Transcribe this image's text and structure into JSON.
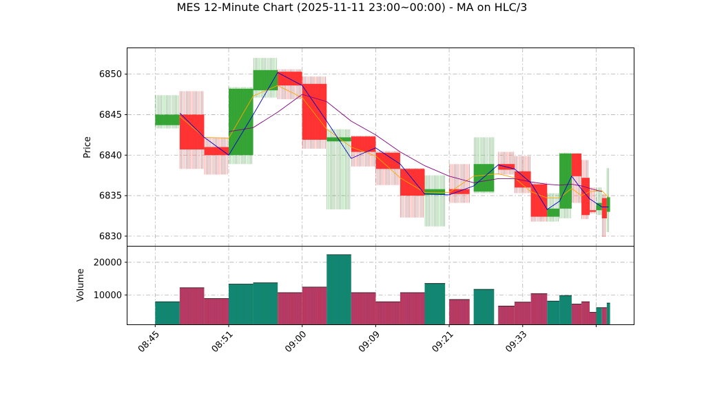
{
  "chart_data": {
    "type": "candlestick",
    "title": "MES 12-Minute Chart (2025-11-11 23:00~00:00) - MA on HLC/3",
    "xlabel": "",
    "ylabel_price": "Price",
    "ylabel_volume": "Volume",
    "x_ticks": [
      "08:45",
      "08:51",
      "09:00",
      "09:09",
      "09:21",
      "09:33"
    ],
    "price_ticks": [
      6830,
      6835,
      6840,
      6845,
      6850
    ],
    "volume_ticks": [
      10000,
      20000
    ],
    "price_ylim": [
      6828.8,
      6853.2
    ],
    "volume_ylim": [
      1000,
      24800
    ],
    "grid": true,
    "colors": {
      "up": "#2ca02c",
      "down": "#ff2a2a",
      "ma_fast": "#ffa500",
      "ma_mid": "#0000cc",
      "ma_slow": "#800080",
      "volume_up": "#118866",
      "volume_down": "#bb3355"
    },
    "bars": [
      {
        "t": 0,
        "w": 3,
        "o": 6843.7,
        "h": 6847.4,
        "l": 6843.3,
        "c": 6845.0,
        "v": 8000
      },
      {
        "t": 3,
        "w": 3,
        "o": 6845.0,
        "h": 6847.9,
        "l": 6838.3,
        "c": 6840.7,
        "v": 12300
      },
      {
        "t": 6,
        "w": 3,
        "o": 6841.0,
        "h": 6842.2,
        "l": 6837.6,
        "c": 6840.0,
        "v": 9000
      },
      {
        "t": 9,
        "w": 3,
        "o": 6840.0,
        "h": 6848.4,
        "l": 6838.9,
        "c": 6848.2,
        "v": 13400
      },
      {
        "t": 12,
        "w": 3,
        "o": 6848.0,
        "h": 6852.0,
        "l": 6847.1,
        "c": 6850.5,
        "v": 13800
      },
      {
        "t": 15,
        "w": 3,
        "o": 6850.3,
        "h": 6850.6,
        "l": 6846.9,
        "c": 6848.6,
        "v": 10800
      },
      {
        "t": 18,
        "w": 3,
        "o": 6848.8,
        "h": 6849.7,
        "l": 6840.8,
        "c": 6841.9,
        "v": 12500
      },
      {
        "t": 21,
        "w": 3,
        "o": 6841.7,
        "h": 6843.2,
        "l": 6833.3,
        "c": 6842.2,
        "v": 22400
      },
      {
        "t": 24,
        "w": 3,
        "o": 6842.3,
        "h": 6842.4,
        "l": 6838.6,
        "c": 6840.4,
        "v": 10800
      },
      {
        "t": 27,
        "w": 3,
        "o": 6840.3,
        "h": 6840.5,
        "l": 6836.3,
        "c": 6838.3,
        "v": 8000
      },
      {
        "t": 30,
        "w": 3,
        "o": 6838.3,
        "h": 6838.4,
        "l": 6832.3,
        "c": 6835.0,
        "v": 10800
      },
      {
        "t": 33,
        "w": 2.5,
        "o": 6835.1,
        "h": 6837.5,
        "l": 6831.2,
        "c": 6835.8,
        "v": 13600
      },
      {
        "t": 36,
        "w": 2.5,
        "o": 6835.8,
        "h": 6838.9,
        "l": 6834.1,
        "c": 6835.2,
        "v": 8700
      },
      {
        "t": 39,
        "w": 2.5,
        "o": 6835.5,
        "h": 6842.2,
        "l": 6835.3,
        "c": 6838.9,
        "v": 11800
      },
      {
        "t": 42,
        "w": 2.0,
        "o": 6838.9,
        "h": 6840.4,
        "l": 6837.6,
        "c": 6838.2,
        "v": 6700
      },
      {
        "t": 44,
        "w": 2.0,
        "o": 6838.0,
        "h": 6839.9,
        "l": 6835.3,
        "c": 6836.0,
        "v": 7900
      },
      {
        "t": 46,
        "w": 2.0,
        "o": 6836.4,
        "h": 6836.6,
        "l": 6831.8,
        "c": 6832.4,
        "v": 10500
      },
      {
        "t": 48,
        "w": 1.5,
        "o": 6832.4,
        "h": 6835.3,
        "l": 6831.8,
        "c": 6833.4,
        "v": 8200
      },
      {
        "t": 49.5,
        "w": 1.5,
        "o": 6833.4,
        "h": 6840.3,
        "l": 6832.2,
        "c": 6840.2,
        "v": 9900
      },
      {
        "t": 51,
        "w": 1.2,
        "o": 6840.2,
        "h": 6840.2,
        "l": 6834.1,
        "c": 6837.4,
        "v": 7300
      },
      {
        "t": 52.2,
        "w": 1.0,
        "o": 6837.2,
        "h": 6839.4,
        "l": 6832.1,
        "c": 6832.6,
        "v": 8000
      },
      {
        "t": 53.2,
        "w": 0.8,
        "o": 6833.2,
        "h": 6836.0,
        "l": 6832.8,
        "c": 6833.0,
        "v": 4800
      },
      {
        "t": 54.0,
        "w": 0.7,
        "o": 6833.2,
        "h": 6836.0,
        "l": 6832.6,
        "c": 6834.1,
        "v": 6200
      },
      {
        "t": 54.7,
        "w": 0.6,
        "o": 6834.7,
        "h": 6835.2,
        "l": 6829.9,
        "c": 6832.2,
        "v": 6200
      },
      {
        "t": 55.3,
        "w": 0.4,
        "o": 6833.0,
        "h": 6838.4,
        "l": 6830.5,
        "c": 6834.8,
        "v": 7600
      }
    ],
    "ma_fast": [
      [
        3,
        6844.8
      ],
      [
        6,
        6842.2
      ],
      [
        9,
        6842.1
      ],
      [
        12,
        6847.3
      ],
      [
        15,
        6848.6
      ],
      [
        18,
        6847.1
      ],
      [
        21,
        6843.2
      ],
      [
        24,
        6841.0
      ],
      [
        27,
        6839.9
      ],
      [
        30,
        6837.2
      ],
      [
        33,
        6835.4
      ],
      [
        36,
        6835.4
      ],
      [
        39,
        6837.4
      ],
      [
        42,
        6837.7
      ],
      [
        44,
        6837.2
      ],
      [
        46,
        6835.5
      ],
      [
        48,
        6834.7
      ],
      [
        49.5,
        6834.7
      ],
      [
        51,
        6835.9
      ],
      [
        52.2,
        6835.0
      ],
      [
        53.2,
        6835.5
      ],
      [
        54.7,
        6835.6
      ],
      [
        55.5,
        6834.8
      ]
    ],
    "ma_mid": [
      [
        3,
        6845.2
      ],
      [
        6,
        6842.2
      ],
      [
        9,
        6840.0
      ],
      [
        12,
        6845.0
      ],
      [
        15,
        6850.2
      ],
      [
        18,
        6848.6
      ],
      [
        21,
        6844.2
      ],
      [
        24,
        6839.6
      ],
      [
        27,
        6840.9
      ],
      [
        30,
        6838.9
      ],
      [
        33,
        6835.2
      ],
      [
        36,
        6835.1
      ],
      [
        39,
        6836.2
      ],
      [
        42,
        6838.8
      ],
      [
        44,
        6838.3
      ],
      [
        46,
        6836.6
      ],
      [
        48,
        6833.3
      ],
      [
        49.5,
        6834.3
      ],
      [
        51,
        6837.4
      ],
      [
        52.2,
        6835.8
      ],
      [
        53.2,
        6834.6
      ],
      [
        54.7,
        6833.6
      ],
      [
        55.5,
        6833.6
      ]
    ],
    "ma_slow": [
      [
        9,
        6842.9
      ],
      [
        12,
        6843.4
      ],
      [
        15,
        6845.3
      ],
      [
        18,
        6847.5
      ],
      [
        21,
        6846.6
      ],
      [
        24,
        6844.2
      ],
      [
        27,
        6842.5
      ],
      [
        30,
        6840.4
      ],
      [
        33,
        6838.7
      ],
      [
        36,
        6837.4
      ],
      [
        39,
        6836.6
      ],
      [
        42,
        6837.1
      ],
      [
        44,
        6837.1
      ],
      [
        46,
        6836.7
      ],
      [
        48,
        6836.4
      ],
      [
        49.5,
        6836.3
      ],
      [
        51,
        6836.4
      ],
      [
        52.2,
        6836.2
      ],
      [
        53.2,
        6835.9
      ],
      [
        54.7,
        6835.5
      ]
    ]
  }
}
